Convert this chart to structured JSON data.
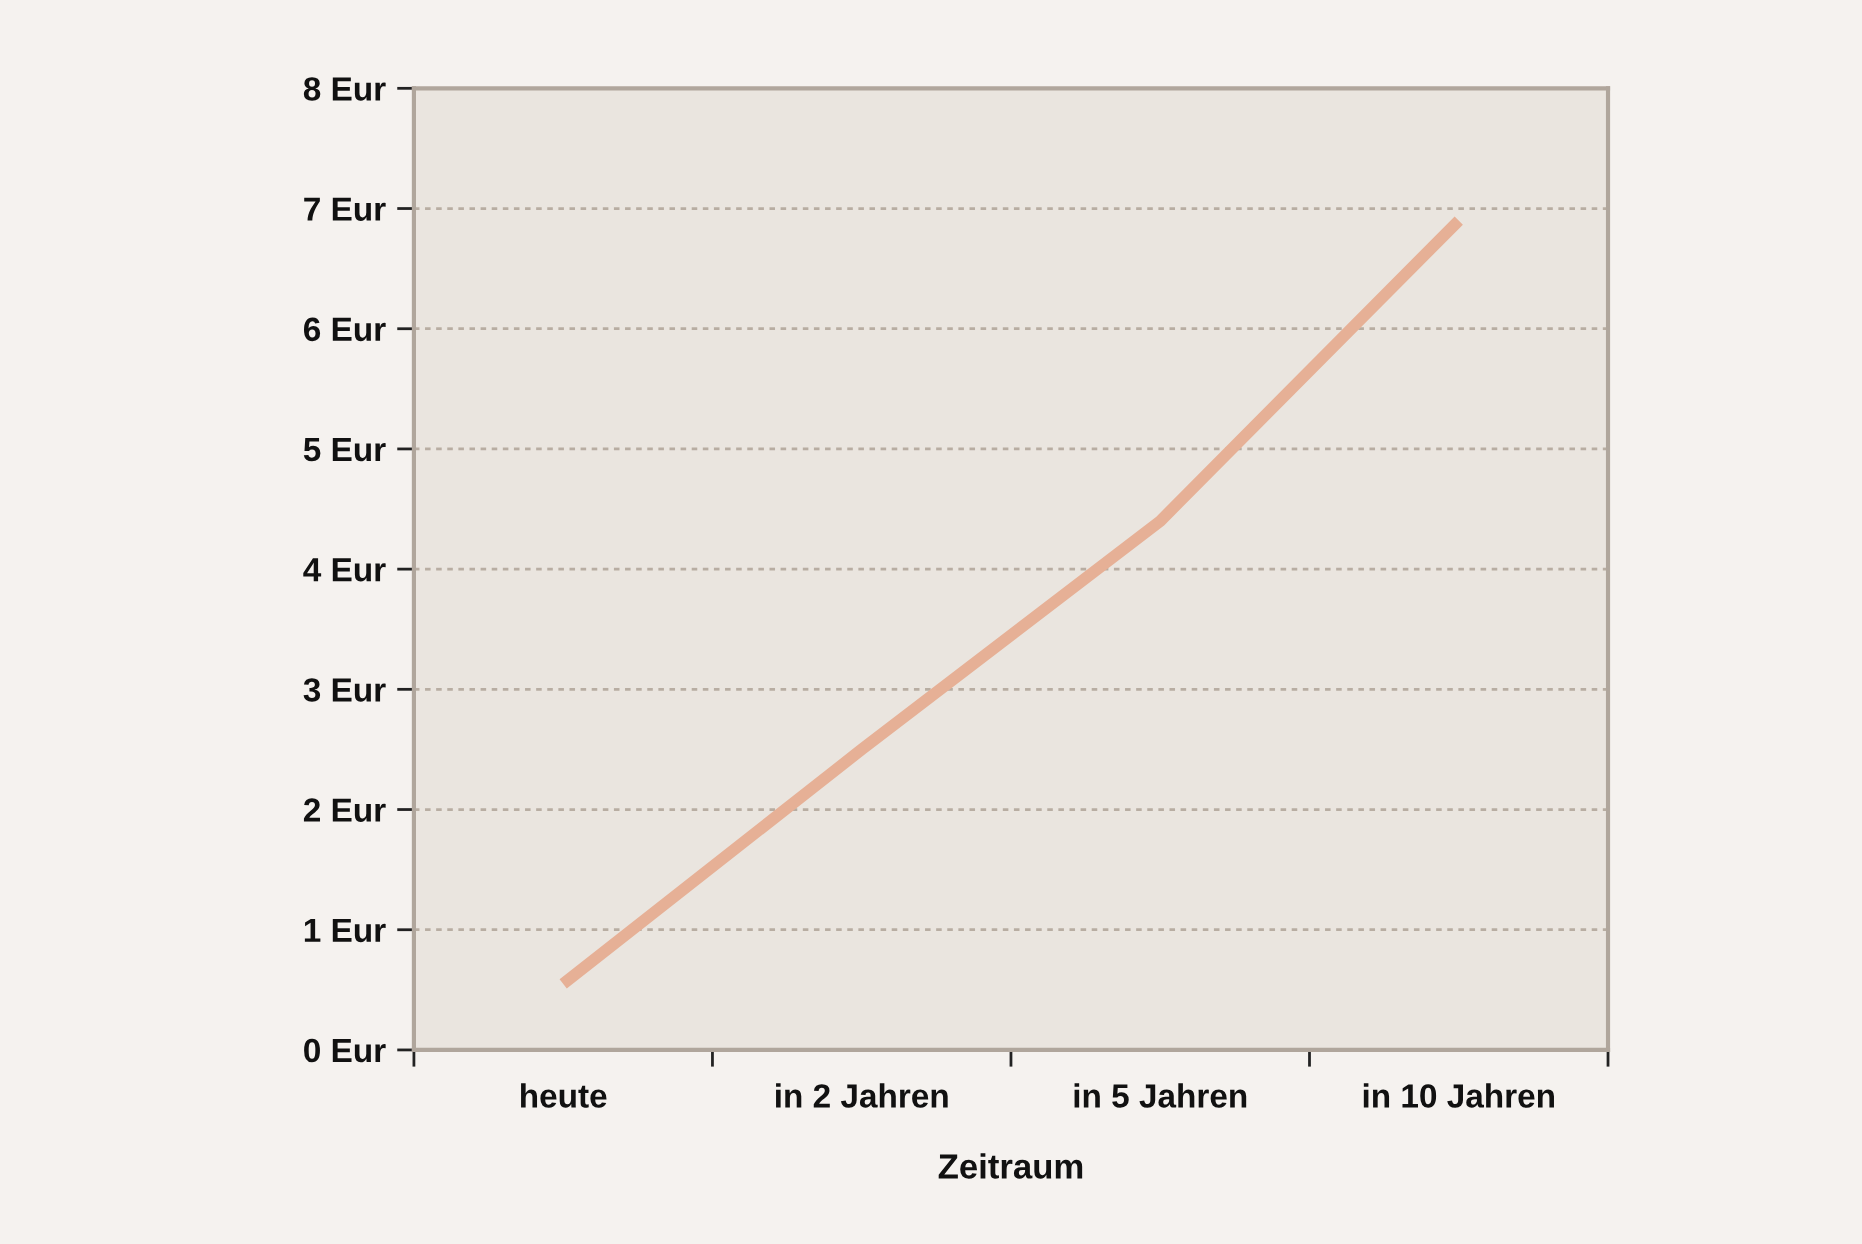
{
  "chart_data": {
    "type": "line",
    "xlabel": "Zeitraum",
    "categories": [
      "heute",
      "in 2 Jahren",
      "in 5 Jahren",
      "in 10 Jahren"
    ],
    "series": [
      {
        "color": "#e6b096",
        "values": [
          0.55,
          2.5,
          4.4,
          6.9
        ]
      }
    ],
    "ylim": [
      0,
      8
    ],
    "yticks": [
      {
        "value": 0,
        "label": "0 Eur"
      },
      {
        "value": 1,
        "label": "1 Eur"
      },
      {
        "value": 2,
        "label": "2 Eur"
      },
      {
        "value": 3,
        "label": "3 Eur"
      },
      {
        "value": 4,
        "label": "4 Eur"
      },
      {
        "value": 5,
        "label": "5 Eur"
      },
      {
        "value": 6,
        "label": "6 Eur"
      },
      {
        "value": 7,
        "label": "7 Eur"
      },
      {
        "value": 8,
        "label": "8 Eur"
      }
    ],
    "grid": "y",
    "line_style": "solid"
  }
}
